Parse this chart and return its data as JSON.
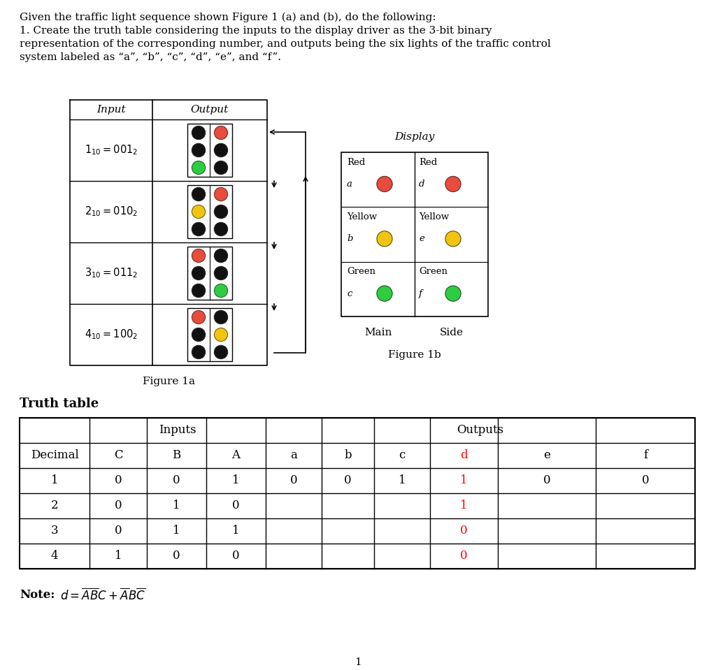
{
  "rows": [
    {
      "decimal": "1",
      "C": "0",
      "B": "0",
      "A": "1",
      "a": "0",
      "b": "0",
      "c": "1",
      "d": "1",
      "e": "0",
      "f": "0"
    },
    {
      "decimal": "2",
      "C": "0",
      "B": "1",
      "A": "0",
      "a": "",
      "b": "",
      "c": "",
      "d": "1",
      "e": "",
      "f": ""
    },
    {
      "decimal": "3",
      "C": "0",
      "B": "1",
      "A": "1",
      "a": "",
      "b": "",
      "c": "",
      "d": "0",
      "e": "",
      "f": ""
    },
    {
      "decimal": "4",
      "C": "1",
      "B": "0",
      "A": "0",
      "a": "",
      "b": "",
      "c": "",
      "d": "0",
      "e": "",
      "f": ""
    }
  ],
  "traffic_sequences": [
    {
      "left_colors": [
        "#111111",
        "#111111",
        "#2ecc40"
      ],
      "right_colors": [
        "#e74c3c",
        "#111111",
        "#111111"
      ]
    },
    {
      "left_colors": [
        "#111111",
        "#f1c40f",
        "#111111"
      ],
      "right_colors": [
        "#e74c3c",
        "#111111",
        "#111111"
      ]
    },
    {
      "left_colors": [
        "#e74c3c",
        "#111111",
        "#111111"
      ],
      "right_colors": [
        "#111111",
        "#111111",
        "#2ecc40"
      ]
    },
    {
      "left_colors": [
        "#e74c3c",
        "#111111",
        "#111111"
      ],
      "right_colors": [
        "#111111",
        "#f1c40f",
        "#111111"
      ]
    }
  ],
  "display_colors_left": [
    "#e74c3c",
    "#f1c40f",
    "#2ecc40"
  ],
  "display_colors_right": [
    "#e74c3c",
    "#f1c40f",
    "#2ecc40"
  ],
  "title_lines": [
    "Given the traffic light sequence shown Figure 1 (a) and (b), do the following:",
    "1. Create the truth table considering the inputs to the display driver as the 3-bit binary",
    "representation of the corresponding number, and outputs being the six lights of the traffic control",
    "system labeled as “a”, “b”, “c”, “d”, “e”, and “f”."
  ],
  "col_names": [
    "Decimal",
    "C",
    "B",
    "A",
    "a",
    "b",
    "c",
    "d",
    "e",
    "f"
  ],
  "input_labels": [
    "$1_{10} = 001_2$",
    "$2_{10} = 010_2$",
    "$3_{10} = 011_2$",
    "$4_{10} = 100_2$"
  ],
  "display_row_labels": [
    "Red",
    "Yellow",
    "Green"
  ],
  "display_row_vars_left": [
    "a",
    "b",
    "c"
  ],
  "display_row_vars_right": [
    "d",
    "e",
    "f"
  ]
}
